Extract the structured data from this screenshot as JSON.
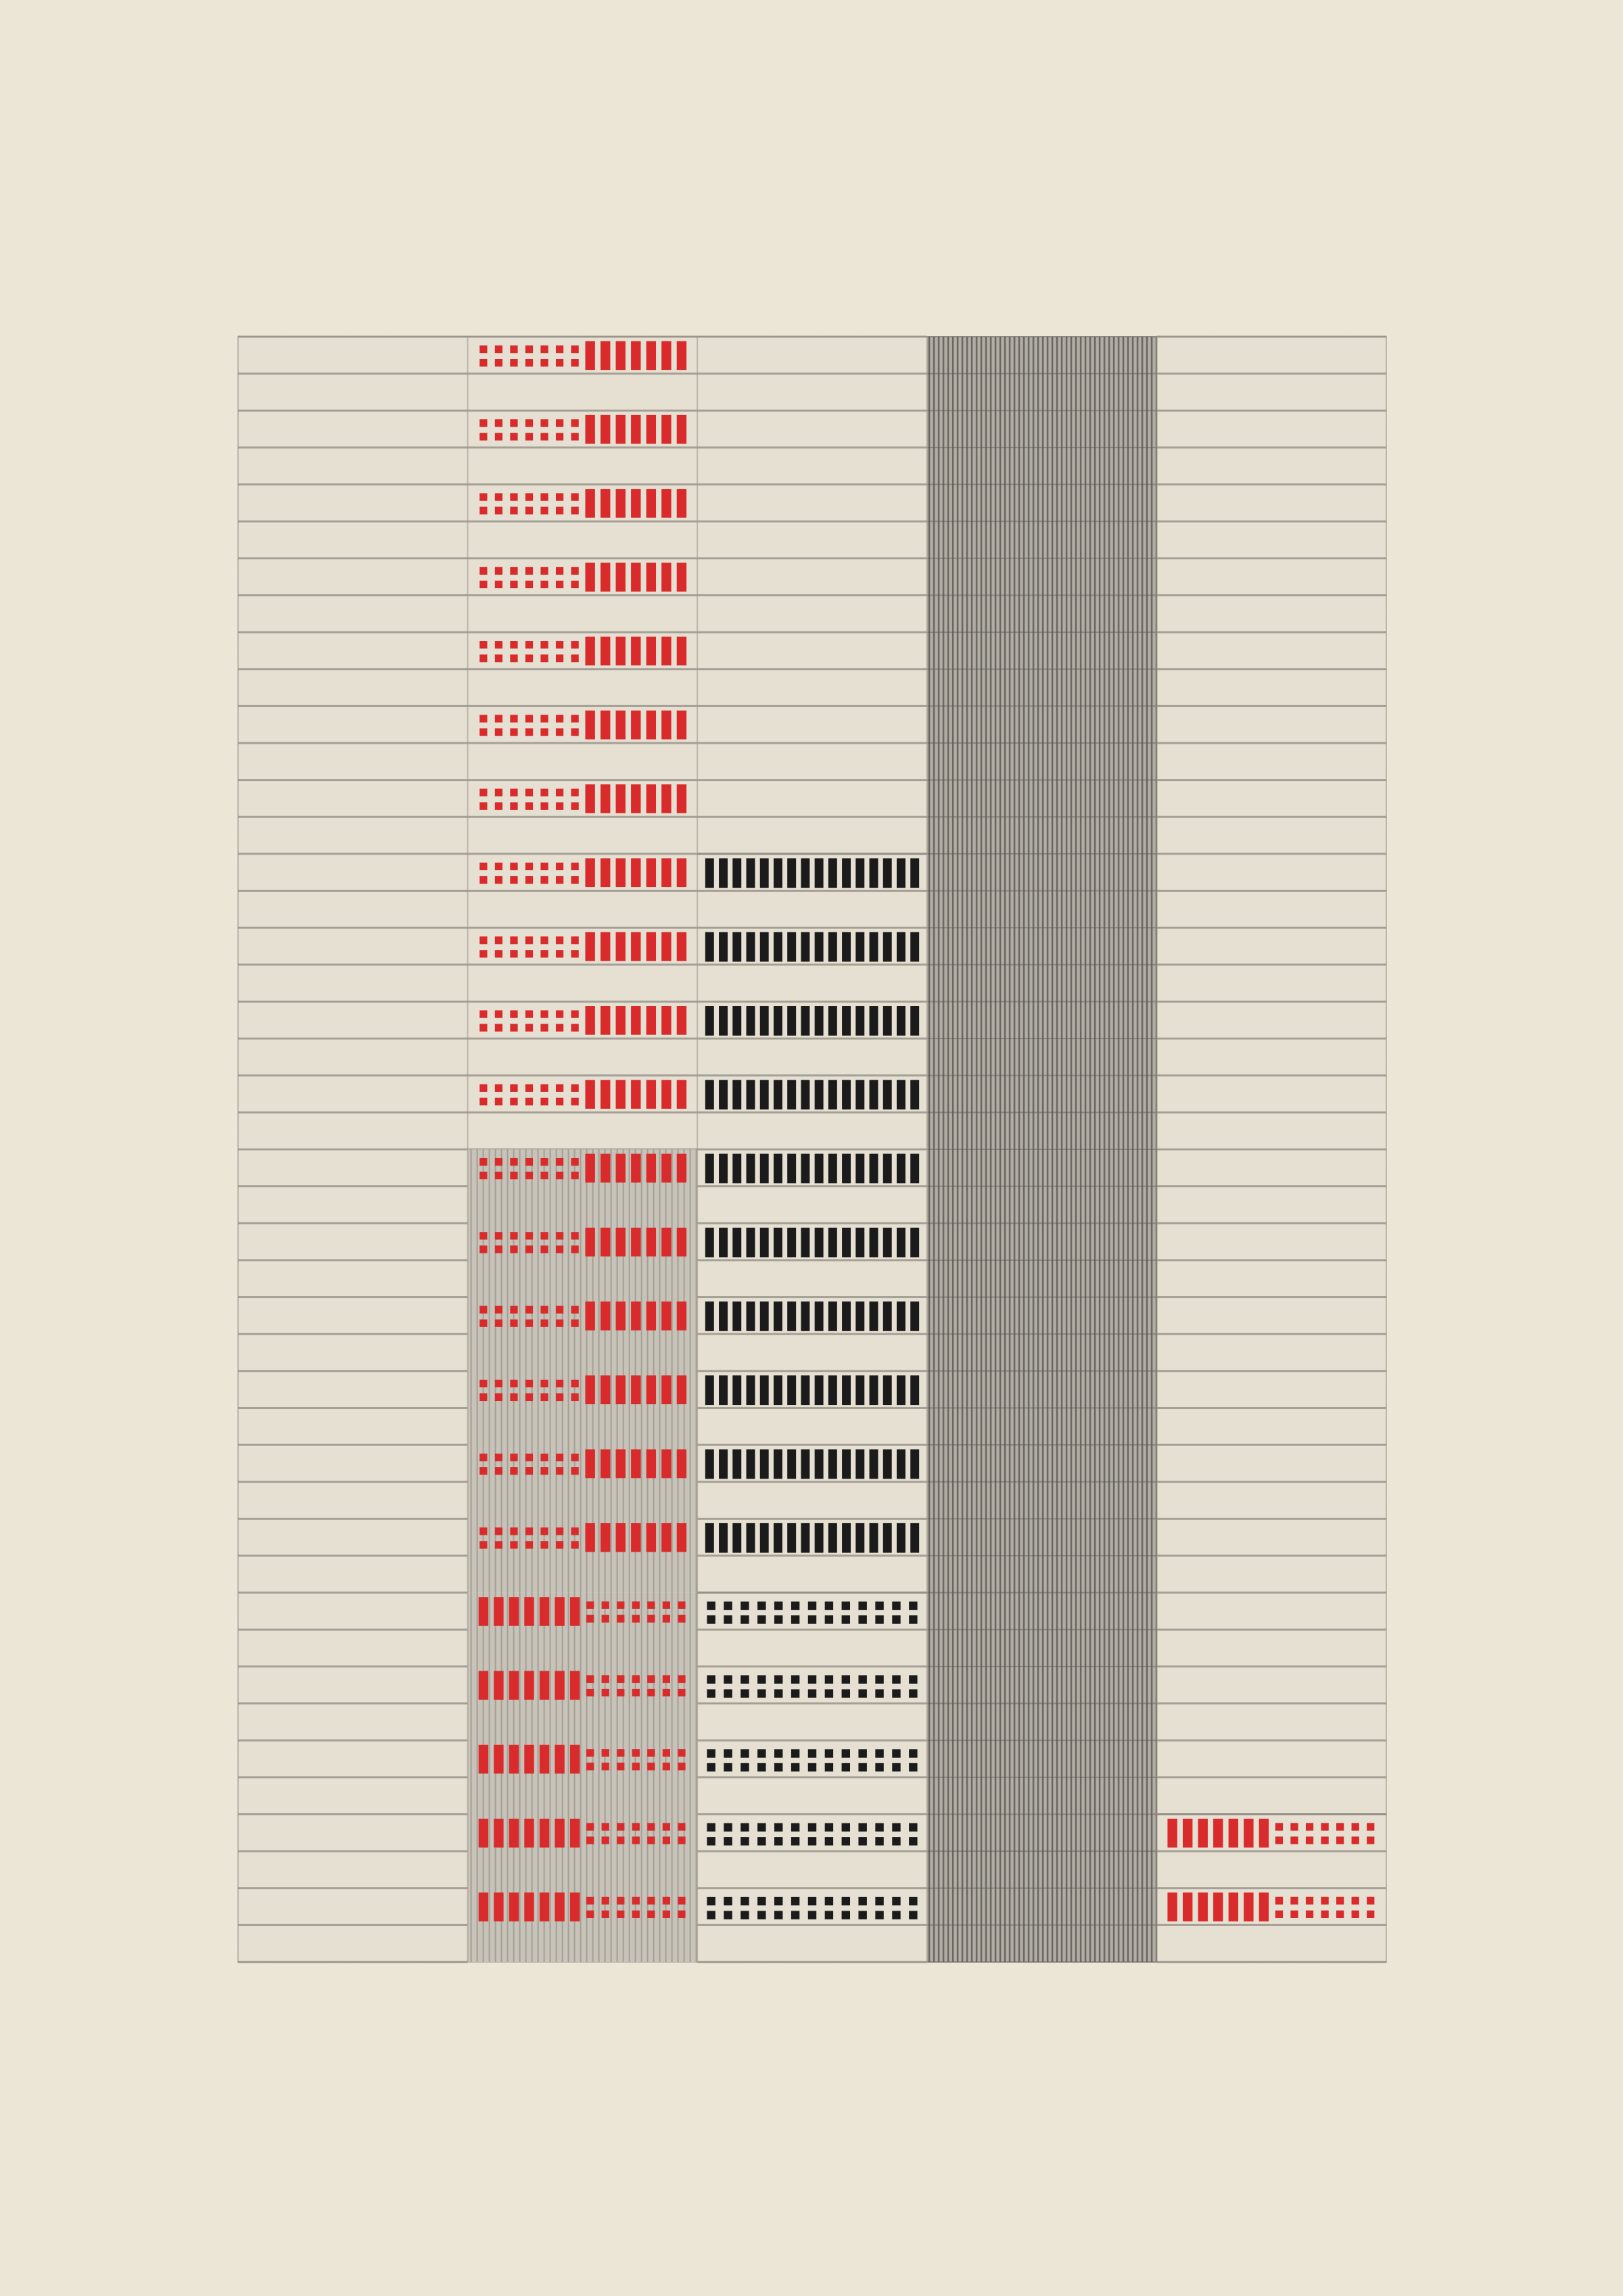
{
  "artwork": {
    "colors": {
      "paper": "#efe9da",
      "canvas": "#e6e0d3",
      "canvas_grey": "#c8c3b8",
      "stripe_grey": "#8f8a82",
      "red": "#d92b2b",
      "black": "#1b1b1b"
    },
    "grid": {
      "columns": 5,
      "row_bands": 44
    },
    "panels": [
      {
        "id": "col-1",
        "column": 1,
        "pattern": "ruled-lines",
        "rows": [
          0,
          44
        ]
      },
      {
        "id": "col-2-top",
        "column": 2,
        "pattern": "red-dots-then-bars",
        "rows": [
          0,
          22
        ],
        "background": "light"
      },
      {
        "id": "col-2-upper-grey",
        "column": 2,
        "pattern": "red-dots-then-bars",
        "rows": [
          22,
          34
        ],
        "background": "grey"
      },
      {
        "id": "col-2-lower-grey",
        "column": 2,
        "pattern": "red-bars-then-dots",
        "rows": [
          34,
          44
        ],
        "background": "grey"
      },
      {
        "id": "col-3-top",
        "column": 3,
        "pattern": "ruled-lines",
        "rows": [
          0,
          14
        ]
      },
      {
        "id": "col-3-black-bars",
        "column": 3,
        "pattern": "black-bars",
        "rows": [
          14,
          34
        ]
      },
      {
        "id": "col-3-black-dots",
        "column": 3,
        "pattern": "black-dots",
        "rows": [
          34,
          44
        ]
      },
      {
        "id": "col-4",
        "column": 4,
        "pattern": "vertical-pinstripe",
        "rows": [
          0,
          44
        ]
      },
      {
        "id": "col-5-top",
        "column": 5,
        "pattern": "ruled-lines",
        "rows": [
          0,
          40
        ]
      },
      {
        "id": "col-5-bottom",
        "column": 5,
        "pattern": "red-bars-then-dots",
        "rows": [
          40,
          44
        ]
      }
    ]
  }
}
